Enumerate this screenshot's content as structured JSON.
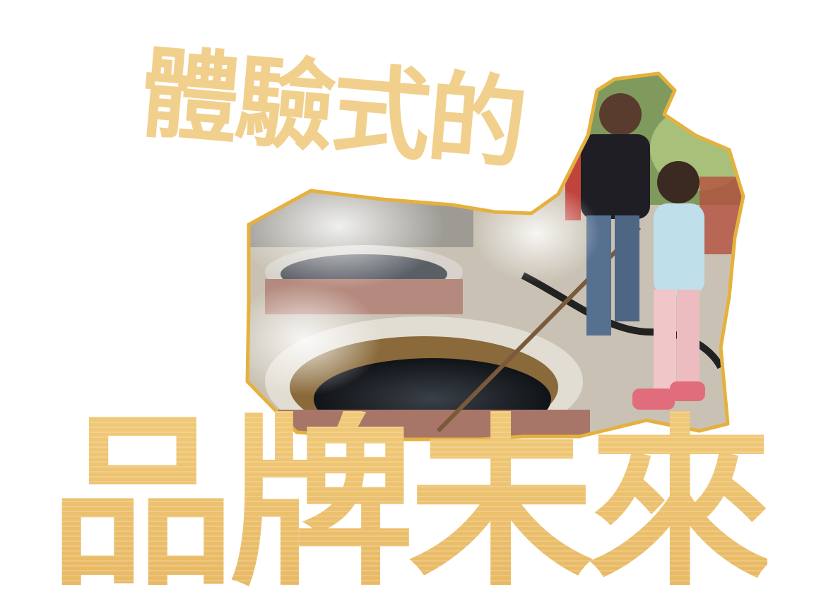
{
  "headline": {
    "line1": "體驗式的",
    "line2": "品牌未來"
  },
  "photo": {
    "subject": "woman-and-child-stirring-steaming-cauldron",
    "frame_color": "#e5b13e"
  },
  "colors": {
    "headline_line1": "#f1d08d",
    "headline_line2": "#ecc071"
  }
}
